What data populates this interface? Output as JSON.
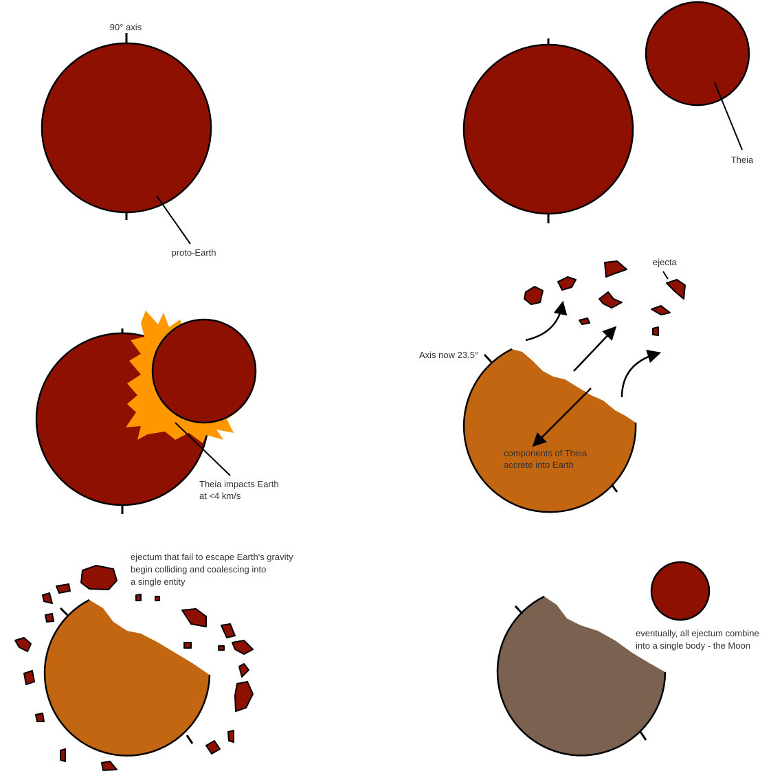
{
  "panels": [
    {
      "labels": [
        "90° axis",
        "proto-Earth"
      ]
    },
    {
      "labels": [
        "Theia"
      ]
    },
    {
      "labels": [
        "Theia impacts Earth",
        "at <4 km/s"
      ]
    },
    {
      "labels": [
        "ejecta",
        "Axis now 23.5°",
        "components of Theia",
        "accrete into Earth"
      ]
    },
    {
      "labels": [
        "ejectum that fail to escape Earth's gravity",
        "begin colliding and coalescing into",
        "a single entity"
      ]
    },
    {
      "labels": [
        "eventually, all ejectum combine",
        "into a single body - the Moon"
      ]
    }
  ]
}
